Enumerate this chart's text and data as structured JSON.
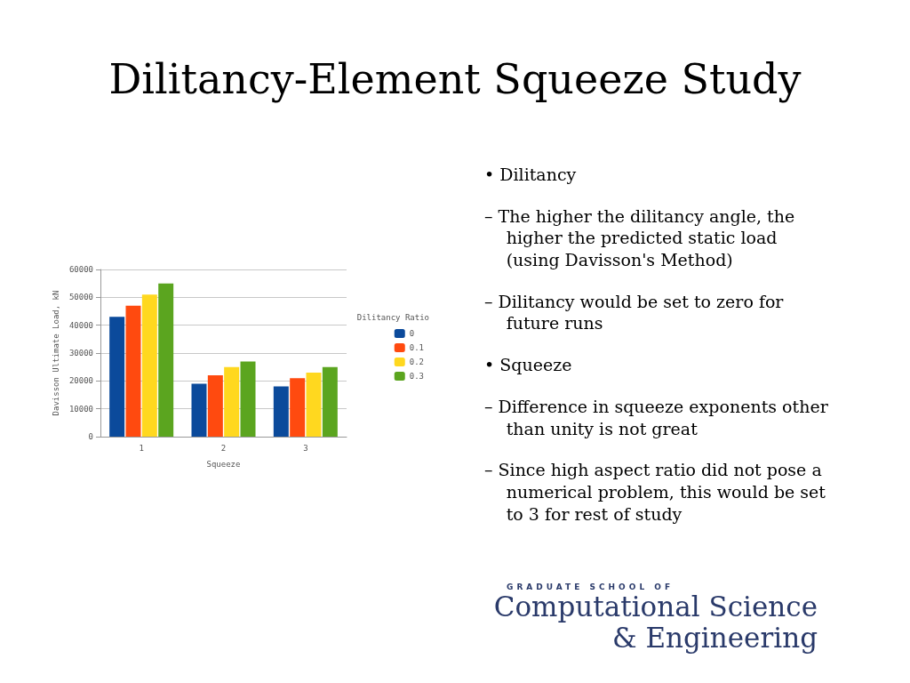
{
  "chart_data": {
    "type": "bar",
    "title": "Dilitancy-Element Squeeze Study",
    "xlabel": "Squeeze",
    "ylabel": "Davisson Ultimate Load, kN",
    "legend_title": "Dilitancy Ratio",
    "categories": [
      "1",
      "2",
      "3"
    ],
    "series": [
      {
        "name": "0",
        "color": "#0b4a9b",
        "values": [
          43000,
          19000,
          18000
        ]
      },
      {
        "name": "0.1",
        "color": "#ff4a0f",
        "values": [
          47000,
          22000,
          21000
        ]
      },
      {
        "name": "0.2",
        "color": "#ffd81f",
        "values": [
          51000,
          25000,
          23000
        ]
      },
      {
        "name": "0.3",
        "color": "#5ba51f",
        "values": [
          55000,
          27000,
          25000
        ]
      }
    ],
    "ylim": [
      0,
      60000
    ],
    "yticks": [
      0,
      10000,
      20000,
      30000,
      40000,
      50000,
      60000
    ],
    "grid": "y",
    "legend": "right",
    "annotations": [
      "• Dilitancy",
      "– The higher the dilitancy angle, the higher the predicted static load (using Davisson's Method)",
      "– Dilitancy would be set to zero for future runs",
      "• Squeeze",
      "– Difference in squeeze exponents other than unity is not great",
      "– Since high aspect ratio did not pose a numerical problem, this would be set to 3 for rest of study",
      "GRADUATE SCHOOL OF",
      "Computational Science",
      "& Engineering"
    ]
  }
}
